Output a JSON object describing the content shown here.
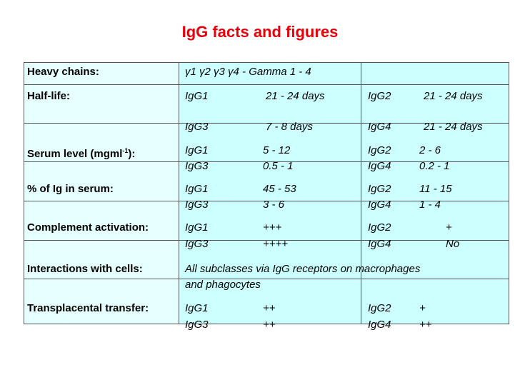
{
  "title": "IgG facts and figures",
  "rows": [
    {
      "label": "Heavy chains:",
      "lines": [
        [
          "γ1 γ2 γ3 γ4 - Gamma 1 - 4"
        ]
      ]
    },
    {
      "label": "Half-life:",
      "lines": [
        [
          "IgG1",
          "21 - 24 days",
          "IgG2",
          "21 - 24 days"
        ],
        [
          "IgG3",
          "7 - 8 days",
          "IgG4",
          "21 - 24 days"
        ]
      ]
    },
    {
      "label": "Serum level (mgml",
      "label_sup": "-1",
      "label_end": "):",
      "lines": [
        [
          "IgG1",
          "5 - 12",
          "IgG2",
          "2 - 6"
        ],
        [
          "IgG3",
          "0.5 - 1",
          "IgG4",
          "0.2 - 1"
        ]
      ]
    },
    {
      "label": "% of Ig in serum:",
      "lines": [
        [
          "IgG1",
          "45 - 53",
          "IgG2",
          "11 - 15"
        ],
        [
          "IgG3",
          "3 - 6",
          "IgG4",
          "1 - 4"
        ]
      ]
    },
    {
      "label": "Complement activation:",
      "lines": [
        [
          "IgG1",
          "+++",
          "IgG2",
          "+"
        ],
        [
          "IgG3",
          "++++",
          "IgG4",
          "No"
        ]
      ]
    },
    {
      "label": "Interactions with cells:",
      "lines": [
        [
          "All subclasses via IgG receptors on macrophages"
        ],
        [
          "and phagocytes"
        ]
      ]
    },
    {
      "label": "Transplacental transfer:",
      "lines": [
        [
          "IgG1",
          "++",
          "IgG2",
          "+"
        ],
        [
          "IgG3",
          "++",
          "IgG4",
          "++"
        ]
      ]
    }
  ]
}
